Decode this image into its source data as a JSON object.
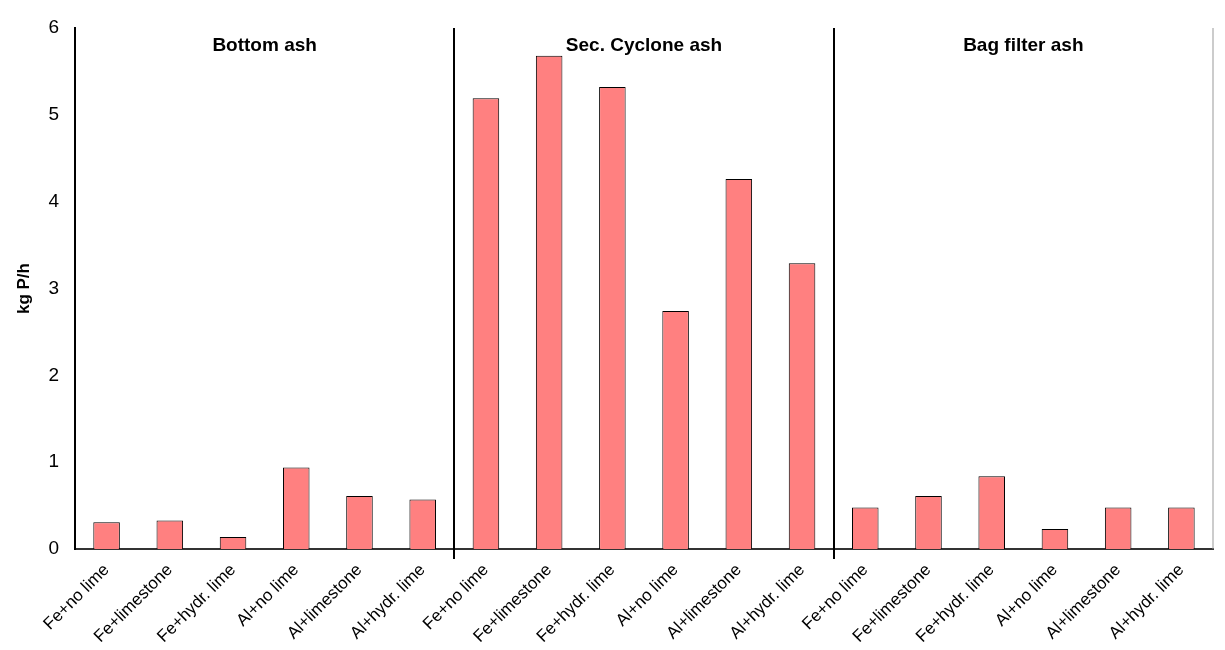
{
  "chart_data": {
    "type": "bar",
    "ylabel": "kg P/h",
    "categories": [
      "Fe+no lime",
      "Fe+limestone",
      "Fe+hydr. lime",
      "Al+no lime",
      "Al+limestone",
      "Al+hydr. lime",
      "Fe+no lime",
      "Fe+limestone",
      "Fe+hydr. lime",
      "Al+no lime",
      "Al+limestone",
      "Al+hydr. lime",
      "Fe+no lime",
      "Fe+limestone",
      "Fe+hydr. lime",
      "Al+no lime",
      "Al+limestone",
      "Al+hydr. lime"
    ],
    "values": [
      0.31,
      0.33,
      0.14,
      0.94,
      0.61,
      0.57,
      5.19,
      5.68,
      5.32,
      2.74,
      4.26,
      3.29,
      0.48,
      0.61,
      0.84,
      0.23,
      0.48,
      0.48
    ],
    "color": "#ff8080",
    "ylim": [
      0,
      6
    ],
    "yticks": [
      0,
      1,
      2,
      3,
      4,
      5,
      6
    ],
    "annotations": [
      "Bottom ash",
      "Sec. Cyclone ash",
      "Bag filter ash"
    ],
    "grid": false,
    "legend": false
  }
}
